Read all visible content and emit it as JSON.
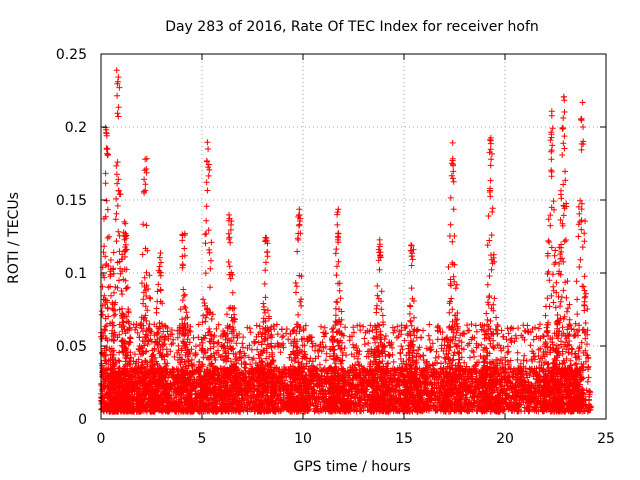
{
  "chart_data": {
    "type": "scatter",
    "title": "Day 283 of 2016, Rate Of TEC Index for receiver hofn",
    "xlabel": "GPS time / hours",
    "ylabel": "ROTI / TECUs",
    "xlim": [
      0,
      25
    ],
    "ylim": [
      0,
      0.25
    ],
    "x_ticks": [
      0,
      5,
      10,
      15,
      20,
      25
    ],
    "x_tick_labels": [
      "0",
      "5",
      "10",
      "15",
      "20",
      "25"
    ],
    "y_ticks": [
      0,
      0.05,
      0.1,
      0.15,
      0.2,
      0.25
    ],
    "y_tick_labels": [
      "0",
      "0.05",
      "0.1",
      "0.15",
      "0.2",
      "0.25"
    ],
    "grid": true,
    "marker": "+",
    "color": "#ff0000",
    "data_range_hours": [
      0,
      23.9
    ],
    "series": [
      {
        "name": "ROTI",
        "baseline_range": [
          0.005,
          0.035
        ],
        "clusters": [
          {
            "x": 0.3,
            "peak": 0.21
          },
          {
            "x": 0.85,
            "peak": 0.24
          },
          {
            "x": 1.2,
            "peak": 0.135
          },
          {
            "x": 2.2,
            "peak": 0.18
          },
          {
            "x": 2.9,
            "peak": 0.115
          },
          {
            "x": 4.1,
            "peak": 0.13
          },
          {
            "x": 5.3,
            "peak": 0.19
          },
          {
            "x": 6.4,
            "peak": 0.14
          },
          {
            "x": 8.2,
            "peak": 0.125
          },
          {
            "x": 9.8,
            "peak": 0.145
          },
          {
            "x": 11.7,
            "peak": 0.145
          },
          {
            "x": 13.8,
            "peak": 0.125
          },
          {
            "x": 15.4,
            "peak": 0.12
          },
          {
            "x": 17.4,
            "peak": 0.19
          },
          {
            "x": 19.3,
            "peak": 0.195
          },
          {
            "x": 22.3,
            "peak": 0.215
          },
          {
            "x": 22.9,
            "peak": 0.225
          },
          {
            "x": 23.8,
            "peak": 0.22
          }
        ]
      }
    ]
  }
}
